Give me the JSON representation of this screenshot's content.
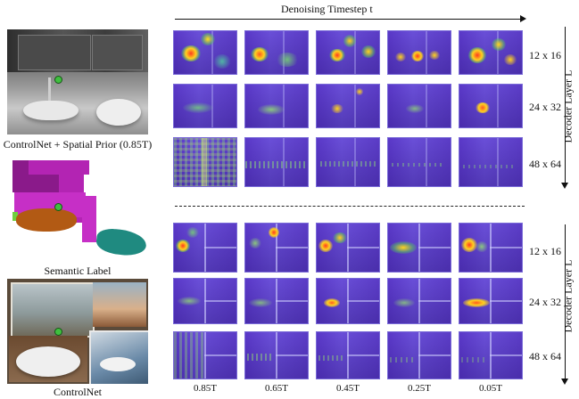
{
  "header": {
    "timestep_axis_label": "Denoising Timestep t"
  },
  "left_panel": {
    "caption_top": "ControlNet + Spatial Prior (0.85T)",
    "caption_mid": "Semantic Label",
    "caption_bottom": "ControlNet"
  },
  "upper_block": {
    "axis_label": "Decoder Layer L",
    "rows": [
      "12 x 16",
      "24 x 32",
      "48 x 64"
    ]
  },
  "lower_block": {
    "axis_label": "Decoder Layer L",
    "rows": [
      "12 x 16",
      "24 x 32",
      "48 x 64"
    ]
  },
  "timesteps": [
    "0.85T",
    "0.65T",
    "0.45T",
    "0.25T",
    "0.05T"
  ],
  "colors": {
    "heatmap_base": "#5a38c8",
    "semantic_wall": "#b324b3",
    "semantic_dark": "#8a1a8a",
    "semantic_sink": "#b25a14",
    "semantic_tub": "#1f8a80",
    "semantic_green": "#6fcf3f",
    "marker": "#3fbf3f"
  }
}
